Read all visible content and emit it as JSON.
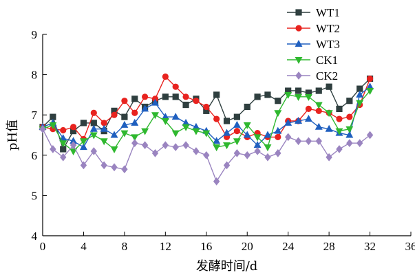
{
  "chart_data": {
    "type": "line",
    "xlabel": "发酵时间/d",
    "ylabel": "pH值",
    "xlim": [
      0,
      36
    ],
    "ylim": [
      4,
      9
    ],
    "xticks": [
      0,
      4,
      8,
      12,
      16,
      20,
      24,
      28,
      32,
      36
    ],
    "yticks": [
      4,
      5,
      6,
      7,
      8,
      9
    ],
    "grid": false,
    "legend_position": "top-right",
    "x": [
      0,
      1,
      2,
      3,
      4,
      5,
      6,
      7,
      8,
      9,
      10,
      11,
      12,
      13,
      14,
      15,
      16,
      17,
      18,
      19,
      20,
      21,
      22,
      23,
      24,
      25,
      26,
      27,
      28,
      29,
      30,
      31,
      32
    ],
    "series": [
      {
        "name": "WT1",
        "color": "#2f3f3f",
        "marker": "square",
        "values": [
          6.7,
          6.95,
          6.15,
          6.6,
          6.8,
          6.8,
          6.6,
          7.1,
          6.95,
          7.4,
          7.2,
          7.35,
          7.45,
          7.45,
          7.25,
          7.4,
          7.1,
          7.5,
          6.85,
          6.95,
          7.2,
          7.45,
          7.5,
          7.35,
          7.6,
          7.6,
          7.55,
          7.6,
          7.7,
          7.15,
          7.35,
          7.65,
          7.9
        ]
      },
      {
        "name": "WT2",
        "color": "#e8231f",
        "marker": "circle",
        "values": [
          6.7,
          6.65,
          6.62,
          6.7,
          6.4,
          7.05,
          6.8,
          7.0,
          7.35,
          7.05,
          7.45,
          7.4,
          7.95,
          7.7,
          7.45,
          7.35,
          7.2,
          6.9,
          6.45,
          6.6,
          6.45,
          6.55,
          6.45,
          6.45,
          6.85,
          6.85,
          7.15,
          7.1,
          7.05,
          6.9,
          6.95,
          7.25,
          7.9
        ]
      },
      {
        "name": "WT3",
        "color": "#1f5fbf",
        "marker": "triangle-up",
        "values": [
          6.7,
          6.8,
          6.42,
          6.35,
          6.2,
          6.65,
          6.65,
          6.5,
          6.75,
          6.8,
          7.15,
          7.3,
          6.95,
          6.95,
          6.8,
          6.7,
          6.6,
          6.35,
          6.55,
          6.75,
          6.5,
          6.25,
          6.5,
          6.6,
          6.8,
          6.85,
          6.9,
          6.7,
          6.65,
          6.55,
          6.5,
          7.5,
          7.7
        ]
      },
      {
        "name": "CK1",
        "color": "#2fb82f",
        "marker": "triangle-down",
        "values": [
          6.65,
          6.75,
          6.3,
          6.1,
          6.35,
          6.5,
          6.35,
          6.15,
          6.55,
          6.45,
          6.6,
          7.0,
          6.85,
          6.55,
          6.7,
          6.6,
          6.55,
          6.2,
          6.25,
          6.35,
          6.75,
          6.45,
          6.2,
          7.05,
          7.5,
          7.45,
          7.45,
          7.25,
          7.05,
          6.6,
          6.65,
          7.3,
          7.6
        ]
      },
      {
        "name": "CK2",
        "color": "#9a84c0",
        "marker": "diamond",
        "values": [
          6.65,
          6.15,
          5.95,
          6.25,
          5.75,
          6.1,
          5.75,
          5.7,
          5.65,
          6.3,
          6.25,
          6.05,
          6.25,
          6.2,
          6.25,
          6.1,
          6.0,
          5.35,
          5.75,
          6.05,
          6.0,
          6.1,
          5.95,
          6.05,
          6.45,
          6.35,
          6.35,
          6.35,
          5.95,
          6.15,
          6.3,
          6.3,
          6.5
        ]
      }
    ]
  }
}
